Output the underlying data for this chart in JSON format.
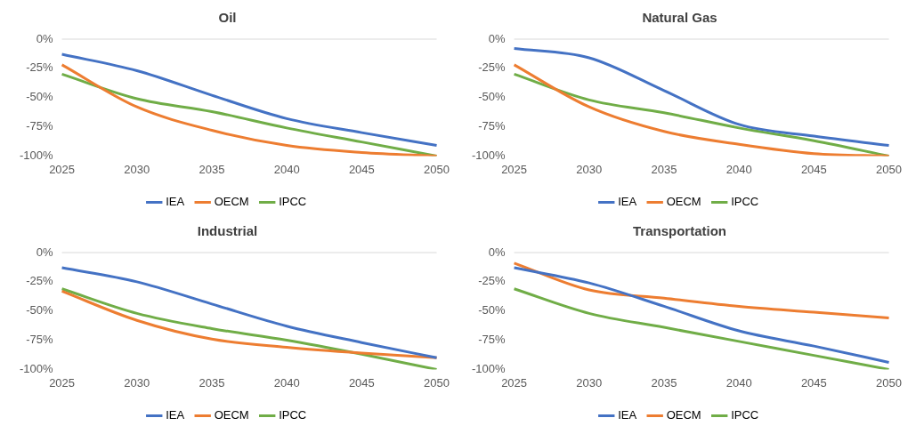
{
  "chart_data": [
    {
      "type": "line",
      "title": "Oil",
      "categories": [
        "2025",
        "2030",
        "2035",
        "2040",
        "2045",
        "2050"
      ],
      "marker": "none",
      "legend": "bottom",
      "ylim": [
        -100,
        0
      ],
      "yticks": [
        {
          "value": 0,
          "label": "0%"
        },
        {
          "value": -25,
          "label": "-25%"
        },
        {
          "value": -50,
          "label": "-50%"
        },
        {
          "value": -75,
          "label": "-75%"
        },
        {
          "value": -100,
          "label": "-100%"
        }
      ],
      "ref_lines": [
        {
          "axis": "y",
          "value": 0,
          "color": "#d9d9d9"
        }
      ],
      "series": [
        {
          "name": "IEA",
          "color": "#4472c4",
          "values": [
            -13,
            -27,
            -48,
            -68,
            -80,
            -91
          ]
        },
        {
          "name": "OECM",
          "color": "#ed7d31",
          "values": [
            -22,
            -58,
            -78,
            -91,
            -97,
            -100
          ]
        },
        {
          "name": "IPCC",
          "color": "#70ad47",
          "values": [
            -30,
            -51,
            -62,
            -76,
            -88,
            -100
          ]
        }
      ]
    },
    {
      "type": "line",
      "title": "Natural Gas",
      "categories": [
        "2025",
        "2030",
        "2035",
        "2040",
        "2045",
        "2050"
      ],
      "marker": "none",
      "legend": "bottom",
      "ylim": [
        -100,
        0
      ],
      "yticks": [
        {
          "value": 0,
          "label": "0%"
        },
        {
          "value": -25,
          "label": "-25%"
        },
        {
          "value": -50,
          "label": "-50%"
        },
        {
          "value": -75,
          "label": "-75%"
        },
        {
          "value": -100,
          "label": "-100%"
        }
      ],
      "ref_lines": [
        {
          "axis": "y",
          "value": 0,
          "color": "#d9d9d9"
        }
      ],
      "series": [
        {
          "name": "IEA",
          "color": "#4472c4",
          "values": [
            -8,
            -16,
            -44,
            -73,
            -83,
            -91
          ]
        },
        {
          "name": "OECM",
          "color": "#ed7d31",
          "values": [
            -22,
            -58,
            -79,
            -90,
            -98,
            -100
          ]
        },
        {
          "name": "IPCC",
          "color": "#70ad47",
          "values": [
            -30,
            -52,
            -63,
            -76,
            -87,
            -100
          ]
        }
      ]
    },
    {
      "type": "line",
      "title": "Industrial",
      "categories": [
        "2025",
        "2030",
        "2035",
        "2040",
        "2045",
        "2050"
      ],
      "marker": "none",
      "legend": "bottom",
      "ylim": [
        -100,
        0
      ],
      "yticks": [
        {
          "value": 0,
          "label": "0%"
        },
        {
          "value": -25,
          "label": "-25%"
        },
        {
          "value": -50,
          "label": "-50%"
        },
        {
          "value": -75,
          "label": "-75%"
        },
        {
          "value": -100,
          "label": "-100%"
        }
      ],
      "ref_lines": [
        {
          "axis": "y",
          "value": 0,
          "color": "#d9d9d9"
        }
      ],
      "series": [
        {
          "name": "IEA",
          "color": "#4472c4",
          "values": [
            -13,
            -25,
            -44,
            -63,
            -77,
            -90
          ]
        },
        {
          "name": "OECM",
          "color": "#ed7d31",
          "values": [
            -33,
            -58,
            -74,
            -81,
            -86,
            -90
          ]
        },
        {
          "name": "IPCC",
          "color": "#70ad47",
          "values": [
            -31,
            -52,
            -65,
            -75,
            -87,
            -100
          ]
        }
      ]
    },
    {
      "type": "line",
      "title": "Transportation",
      "categories": [
        "2025",
        "2030",
        "2035",
        "2040",
        "2045",
        "2050"
      ],
      "marker": "none",
      "legend": "bottom",
      "ylim": [
        -100,
        0
      ],
      "yticks": [
        {
          "value": 0,
          "label": "0%"
        },
        {
          "value": -25,
          "label": "-25%"
        },
        {
          "value": -50,
          "label": "-50%"
        },
        {
          "value": -75,
          "label": "-75%"
        },
        {
          "value": -100,
          "label": "-100%"
        }
      ],
      "ref_lines": [
        {
          "axis": "y",
          "value": 0,
          "color": "#d9d9d9"
        }
      ],
      "series": [
        {
          "name": "IEA",
          "color": "#4472c4",
          "values": [
            -13,
            -26,
            -46,
            -67,
            -80,
            -94
          ]
        },
        {
          "name": "OECM",
          "color": "#ed7d31",
          "values": [
            -9,
            -32,
            -39,
            -46,
            -51,
            -56
          ]
        },
        {
          "name": "IPCC",
          "color": "#70ad47",
          "values": [
            -31,
            -52,
            -64,
            -76,
            -88,
            -100
          ]
        }
      ]
    }
  ]
}
